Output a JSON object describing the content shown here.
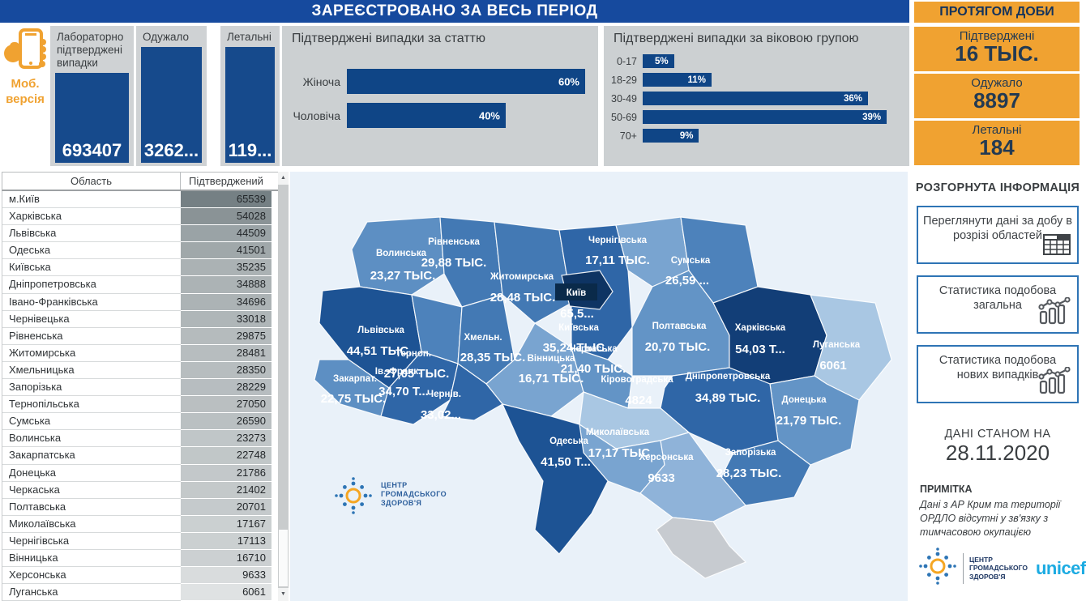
{
  "header": {
    "title": "ЗАРЕЄСТРОВАНО ЗА ВЕСЬ ПЕРІОД",
    "daily_title": "ПРОТЯГОМ ДОБИ"
  },
  "mobile": {
    "line1": "Моб.",
    "line2": "версія"
  },
  "total_cards": [
    {
      "title": "Лабораторно підтверджені випадки",
      "value": "693407"
    },
    {
      "title": "Одужало",
      "value": "3262..."
    },
    {
      "title": "Летальні",
      "value": "119..."
    }
  ],
  "daily_cards": [
    {
      "title": "Підтверджені",
      "value": "16 ТЫС."
    },
    {
      "title": "Одужало",
      "value": "8897"
    },
    {
      "title": "Летальні",
      "value": "184"
    }
  ],
  "colors": {
    "accent_navy": "#164a9e",
    "bar_navy": "#0f4586",
    "accent_orange": "#f0a231",
    "map_bg": "#e9f1f9",
    "no_data_gray": "#c7cbd0",
    "unicef_blue": "#1cabe2"
  },
  "chart_data": [
    {
      "type": "bar",
      "orientation": "horizontal",
      "title": "Підтверджені випадки за статтю",
      "categories": [
        "Жіноча",
        "Чоловіча"
      ],
      "values": [
        60,
        40
      ],
      "unit": "%",
      "xlim": [
        0,
        60
      ],
      "value_labels": [
        "60%",
        "40%"
      ]
    },
    {
      "type": "bar",
      "orientation": "horizontal",
      "title": "Підтверджені випадки за віковою групою",
      "categories": [
        "0-17",
        "18-29",
        "30-49",
        "50-69",
        "70+"
      ],
      "values": [
        5,
        11,
        36,
        39,
        9
      ],
      "unit": "%",
      "xlim": [
        0,
        39
      ],
      "value_labels": [
        "5%",
        "11%",
        "36%",
        "39%",
        "9%"
      ]
    },
    {
      "type": "table",
      "columns": [
        "Область",
        "Підтверджений"
      ],
      "rows": [
        [
          "м.Київ",
          65539
        ],
        [
          "Харківська",
          54028
        ],
        [
          "Львівська",
          44509
        ],
        [
          "Одеська",
          41501
        ],
        [
          "Київська",
          35235
        ],
        [
          "Дніпропетровська",
          34888
        ],
        [
          "Івано-Франківська",
          34696
        ],
        [
          "Чернівецька",
          33018
        ],
        [
          "Рівненська",
          29875
        ],
        [
          "Житомирська",
          28481
        ],
        [
          "Хмельницька",
          28350
        ],
        [
          "Запорізька",
          28229
        ],
        [
          "Тернопільська",
          27050
        ],
        [
          "Сумська",
          26590
        ],
        [
          "Волинська",
          23273
        ],
        [
          "Закарпатська",
          22748
        ],
        [
          "Донецька",
          21786
        ],
        [
          "Черкаська",
          21402
        ],
        [
          "Полтавська",
          20701
        ],
        [
          "Миколаївська",
          17167
        ],
        [
          "Чернігівська",
          17113
        ],
        [
          "Вінницька",
          16710
        ],
        [
          "Херсонська",
          9633
        ],
        [
          "Луганська",
          6061
        ]
      ],
      "shading": {
        "min_value": 6061,
        "max_value": 65539
      }
    },
    {
      "type": "heatmap",
      "subtype": "choropleth-map",
      "title": "Підтверджені випадки по областях (карта)",
      "regions": [
        {
          "id": "volyn",
          "name": "Волинська",
          "value": "23,27 ТЫС.",
          "color": "#5d8fc3"
        },
        {
          "id": "rivne",
          "name": "Рівненська",
          "value": "29,88 ТЫС.",
          "color": "#4379b4"
        },
        {
          "id": "zhytomyr",
          "name": "Житомирська",
          "value": "28,48 ТЫС.",
          "color": "#4379b4"
        },
        {
          "id": "kyiv_obl",
          "name": "Київська",
          "value": "35,24 ТЫС.",
          "color": "#2f66a7"
        },
        {
          "id": "kyiv_city",
          "name": "Київ",
          "value": "65,5...",
          "color": "#0e3463"
        },
        {
          "id": "chernihiv",
          "name": "Чернігівська",
          "value": "17,11 ТЫС.",
          "color": "#79a4d0"
        },
        {
          "id": "sumy",
          "name": "Сумська",
          "value": "26,59 ...",
          "color": "#4d82bb"
        },
        {
          "id": "lviv",
          "name": "Львівська",
          "value": "44,51 ТЫС.",
          "color": "#1d5394"
        },
        {
          "id": "ternopil",
          "name": "Терноп.",
          "value": "27,05 ТЫС.",
          "color": "#4d82bb"
        },
        {
          "id": "khmelnytskyi",
          "name": "Хмельн.",
          "value": "28,35 ТЫС.",
          "color": "#4379b4"
        },
        {
          "id": "vinnytsia",
          "name": "Вінницька",
          "value": "16,71 ТЫС.",
          "color": "#79a4d0"
        },
        {
          "id": "cherkasy",
          "name": "Черкаська",
          "value": "21,40 ТЫС.",
          "color": "#6394c6"
        },
        {
          "id": "poltava",
          "name": "Полтавська",
          "value": "20,70 ТЫС.",
          "color": "#6394c6"
        },
        {
          "id": "kharkiv",
          "name": "Харківська",
          "value": "54,03 Т...",
          "color": "#123e77"
        },
        {
          "id": "luhansk",
          "name": "Луганська",
          "value": "6061",
          "color": "#a9c7e3"
        },
        {
          "id": "donetsk",
          "name": "Донецька",
          "value": "21,79 ТЫС.",
          "color": "#6394c6"
        },
        {
          "id": "dnipro",
          "name": "Дніпропетровська",
          "value": "34,89 ТЫС.",
          "color": "#2f66a7"
        },
        {
          "id": "zaporizhzhia",
          "name": "Запорізька",
          "value": "28,23 ТЫС.",
          "color": "#4379b4"
        },
        {
          "id": "kirovohrad",
          "name": "Кіровоградська",
          "value": "4824",
          "color": "#a9c7e3"
        },
        {
          "id": "mykolaiv",
          "name": "Миколаївська",
          "value": "17,17 ТЫС.",
          "color": "#79a4d0"
        },
        {
          "id": "odesa",
          "name": "Одеська",
          "value": "41,50 Т...",
          "color": "#1d5394"
        },
        {
          "id": "kherson",
          "name": "Херсонська",
          "value": "9633",
          "color": "#8fb3d9"
        },
        {
          "id": "zakarpattia",
          "name": "Закарпат.",
          "value": "22,75 ТЫС.",
          "color": "#5d8fc3"
        },
        {
          "id": "ivano_frankivsk",
          "name": "Ів.-Франк.",
          "value": "34,70 Т...",
          "color": "#2f66a7"
        },
        {
          "id": "chernivtsi",
          "name": "Чернів.",
          "value": "33,02...",
          "color": "#2f66a7"
        },
        {
          "id": "crimea",
          "name": "",
          "value": "",
          "color": "#c7cbd0"
        }
      ]
    }
  ],
  "map_watermark": {
    "line1": "ЦЕНТР",
    "line2": "ГРОМАДСЬКОГО",
    "line3": "ЗДОРОВ'Я"
  },
  "right_panel": {
    "section_title": "РОЗГОРНУТА ІНФОРМАЦІЯ",
    "buttons": [
      {
        "label": "Переглянути дані за добу в розрізі областей",
        "icon": "table-icon"
      },
      {
        "label": "Статистика подобова загальна",
        "icon": "chart-icon"
      },
      {
        "label": "Статистика подобова нових випадків",
        "icon": "chart-icon"
      }
    ],
    "asof_label": "ДАНІ СТАНОМ НА",
    "asof_date": "28.11.2020",
    "note_title": "ПРИМІТКА",
    "note_text": "Дані з АР Крим та території ОРДЛО відсутні у зв'язку з тимчасовою окупацією"
  },
  "logos": {
    "cgz_line1": "ЦЕНТР",
    "cgz_line2": "ГРОМАДСЬКОГО",
    "cgz_line3": "ЗДОРОВ'Я",
    "unicef": "unicef"
  }
}
